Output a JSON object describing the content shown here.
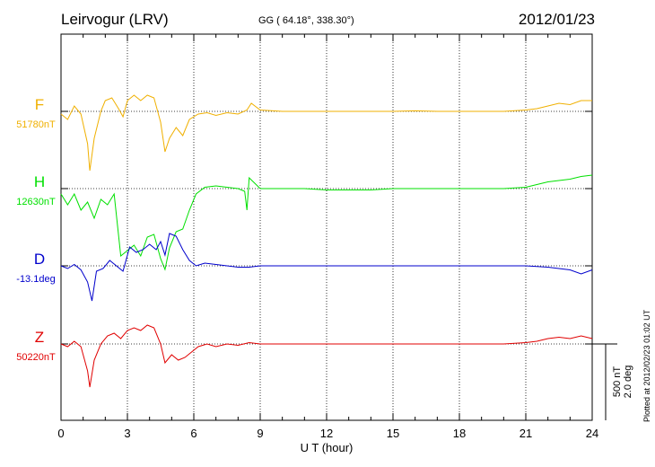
{
  "header": {
    "station": "Leirvogur (LRV)",
    "coords": "GG ( 64.18°, 338.30°)",
    "date": "2012/01/23"
  },
  "plotted_note": "Plotted at 2012/02/23 01:02 UT",
  "colors": {
    "F": "#f0b000",
    "H": "#00e000",
    "D": "#0000cc",
    "Z": "#e00000",
    "axis": "#000000"
  },
  "chart_data": {
    "type": "line",
    "title": "Leirvogur (LRV)",
    "xlabel": "U T (hour)",
    "xlim": [
      0,
      24
    ],
    "xticks": [
      0,
      3,
      6,
      9,
      12,
      15,
      18,
      21,
      24
    ],
    "grid": true,
    "scale_bar": {
      "label1": "500 nT",
      "label2": "2.0 deg"
    },
    "series": [
      {
        "name": "F",
        "baseline_label": "51780nT",
        "color": "#f0b000",
        "points": [
          [
            0,
            -10
          ],
          [
            0.3,
            -30
          ],
          [
            0.6,
            20
          ],
          [
            0.9,
            -10
          ],
          [
            1.2,
            -120
          ],
          [
            1.3,
            -220
          ],
          [
            1.5,
            -100
          ],
          [
            1.8,
            0
          ],
          [
            2.0,
            40
          ],
          [
            2.3,
            50
          ],
          [
            2.6,
            10
          ],
          [
            2.8,
            -20
          ],
          [
            3.0,
            40
          ],
          [
            3.3,
            60
          ],
          [
            3.6,
            40
          ],
          [
            3.9,
            60
          ],
          [
            4.2,
            50
          ],
          [
            4.5,
            -40
          ],
          [
            4.7,
            -150
          ],
          [
            4.9,
            -100
          ],
          [
            5.2,
            -60
          ],
          [
            5.5,
            -90
          ],
          [
            5.8,
            -30
          ],
          [
            6.2,
            -10
          ],
          [
            6.6,
            -5
          ],
          [
            7.0,
            -15
          ],
          [
            7.5,
            -5
          ],
          [
            8.0,
            -10
          ],
          [
            8.4,
            5
          ],
          [
            8.6,
            30
          ],
          [
            9.0,
            5
          ],
          [
            10,
            0
          ],
          [
            11,
            0
          ],
          [
            12,
            0
          ],
          [
            13,
            0
          ],
          [
            14,
            0
          ],
          [
            15,
            0
          ],
          [
            16,
            2
          ],
          [
            17,
            0
          ],
          [
            18,
            0
          ],
          [
            19,
            0
          ],
          [
            20,
            0
          ],
          [
            21,
            5
          ],
          [
            21.5,
            10
          ],
          [
            22,
            20
          ],
          [
            22.5,
            30
          ],
          [
            23,
            25
          ],
          [
            23.5,
            40
          ],
          [
            24,
            40
          ]
        ]
      },
      {
        "name": "H",
        "baseline_label": "12630nT",
        "color": "#00e000",
        "points": [
          [
            0,
            -20
          ],
          [
            0.3,
            -60
          ],
          [
            0.6,
            -20
          ],
          [
            0.9,
            -80
          ],
          [
            1.2,
            -50
          ],
          [
            1.5,
            -110
          ],
          [
            1.8,
            -40
          ],
          [
            2.1,
            -60
          ],
          [
            2.4,
            -20
          ],
          [
            2.7,
            -250
          ],
          [
            3.0,
            -230
          ],
          [
            3.3,
            -210
          ],
          [
            3.6,
            -250
          ],
          [
            3.9,
            -180
          ],
          [
            4.2,
            -170
          ],
          [
            4.5,
            -260
          ],
          [
            4.7,
            -300
          ],
          [
            4.9,
            -220
          ],
          [
            5.2,
            -160
          ],
          [
            5.5,
            -150
          ],
          [
            5.8,
            -80
          ],
          [
            6.1,
            -20
          ],
          [
            6.5,
            5
          ],
          [
            7.0,
            10
          ],
          [
            7.5,
            5
          ],
          [
            8.0,
            0
          ],
          [
            8.3,
            -10
          ],
          [
            8.4,
            -80
          ],
          [
            8.5,
            40
          ],
          [
            9.0,
            0
          ],
          [
            10,
            0
          ],
          [
            11,
            0
          ],
          [
            12,
            -5
          ],
          [
            13,
            -5
          ],
          [
            14,
            -5
          ],
          [
            15,
            0
          ],
          [
            16,
            0
          ],
          [
            17,
            0
          ],
          [
            18,
            0
          ],
          [
            19,
            0
          ],
          [
            20,
            0
          ],
          [
            21,
            5
          ],
          [
            21.5,
            15
          ],
          [
            22,
            25
          ],
          [
            22.5,
            30
          ],
          [
            23,
            35
          ],
          [
            23.5,
            45
          ],
          [
            24,
            50
          ]
        ]
      },
      {
        "name": "D",
        "baseline_label": "-13.1deg",
        "color": "#0000cc",
        "points": [
          [
            0,
            0
          ],
          [
            0.3,
            -10
          ],
          [
            0.6,
            5
          ],
          [
            0.9,
            -15
          ],
          [
            1.2,
            -60
          ],
          [
            1.4,
            -130
          ],
          [
            1.6,
            -20
          ],
          [
            1.9,
            -10
          ],
          [
            2.2,
            20
          ],
          [
            2.5,
            0
          ],
          [
            2.8,
            -20
          ],
          [
            3.1,
            70
          ],
          [
            3.4,
            50
          ],
          [
            3.7,
            60
          ],
          [
            4.0,
            80
          ],
          [
            4.3,
            60
          ],
          [
            4.5,
            90
          ],
          [
            4.7,
            40
          ],
          [
            4.9,
            120
          ],
          [
            5.2,
            110
          ],
          [
            5.5,
            60
          ],
          [
            5.8,
            20
          ],
          [
            6.1,
            0
          ],
          [
            6.5,
            10
          ],
          [
            7.0,
            5
          ],
          [
            7.5,
            0
          ],
          [
            8.0,
            -5
          ],
          [
            8.5,
            -5
          ],
          [
            9,
            0
          ],
          [
            10,
            0
          ],
          [
            11,
            0
          ],
          [
            12,
            0
          ],
          [
            13,
            0
          ],
          [
            14,
            0
          ],
          [
            15,
            0
          ],
          [
            16,
            0
          ],
          [
            17,
            0
          ],
          [
            18,
            0
          ],
          [
            19,
            0
          ],
          [
            20,
            0
          ],
          [
            21,
            0
          ],
          [
            22,
            -5
          ],
          [
            23,
            -15
          ],
          [
            23.5,
            -30
          ],
          [
            24,
            -15
          ]
        ]
      },
      {
        "name": "Z",
        "baseline_label": "50220nT",
        "color": "#e00000",
        "points": [
          [
            0,
            0
          ],
          [
            0.3,
            -10
          ],
          [
            0.6,
            10
          ],
          [
            0.9,
            -10
          ],
          [
            1.2,
            -100
          ],
          [
            1.3,
            -160
          ],
          [
            1.5,
            -60
          ],
          [
            1.8,
            0
          ],
          [
            2.1,
            30
          ],
          [
            2.4,
            40
          ],
          [
            2.7,
            20
          ],
          [
            3.0,
            50
          ],
          [
            3.3,
            60
          ],
          [
            3.6,
            50
          ],
          [
            3.9,
            70
          ],
          [
            4.2,
            60
          ],
          [
            4.5,
            0
          ],
          [
            4.7,
            -70
          ],
          [
            5.0,
            -40
          ],
          [
            5.3,
            -60
          ],
          [
            5.6,
            -50
          ],
          [
            5.9,
            -30
          ],
          [
            6.2,
            -10
          ],
          [
            6.6,
            0
          ],
          [
            7.0,
            -10
          ],
          [
            7.5,
            0
          ],
          [
            8.0,
            -5
          ],
          [
            8.5,
            5
          ],
          [
            9,
            0
          ],
          [
            10,
            0
          ],
          [
            11,
            0
          ],
          [
            12,
            0
          ],
          [
            13,
            0
          ],
          [
            14,
            0
          ],
          [
            15,
            0
          ],
          [
            16,
            0
          ],
          [
            17,
            0
          ],
          [
            18,
            0
          ],
          [
            19,
            0
          ],
          [
            20,
            0
          ],
          [
            21,
            5
          ],
          [
            21.5,
            10
          ],
          [
            22,
            20
          ],
          [
            22.5,
            25
          ],
          [
            23,
            20
          ],
          [
            23.5,
            30
          ],
          [
            24,
            20
          ]
        ]
      }
    ]
  }
}
